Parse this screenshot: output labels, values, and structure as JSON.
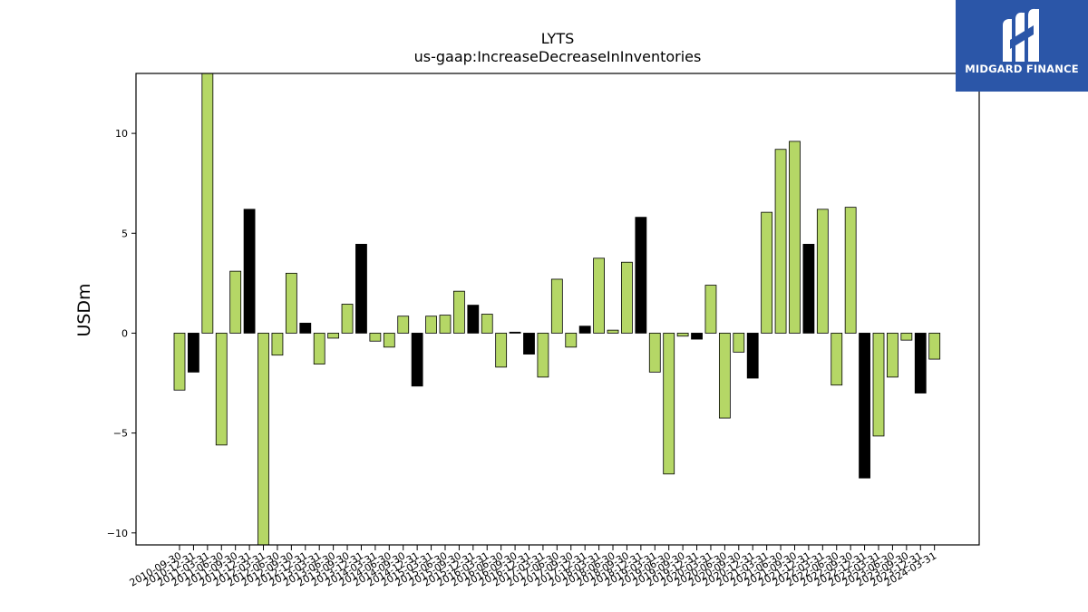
{
  "chart_data": {
    "type": "bar",
    "title": "LYTS",
    "subtitle": "us-gaap:IncreaseDecreaseInInventories",
    "xlabel": "",
    "ylabel": "USDm",
    "ylim": [
      -10.6,
      13
    ],
    "yticks": [
      -10,
      -5,
      0,
      5,
      10
    ],
    "grid": false,
    "categories": [
      "2010-09-30",
      "2010-12-31",
      "2011-03-31",
      "2011-06-30",
      "2011-09-30",
      "2011-12-31",
      "2012-03-31",
      "2012-06-30",
      "2012-09-30",
      "2012-12-31",
      "2013-03-31",
      "2013-06-30",
      "2013-09-30",
      "2013-12-31",
      "2014-03-31",
      "2014-06-30",
      "2014-09-30",
      "2014-12-31",
      "2015-03-31",
      "2015-06-30",
      "2015-09-30",
      "2015-12-31",
      "2016-03-31",
      "2016-06-30",
      "2016-09-30",
      "2016-12-31",
      "2017-03-31",
      "2017-06-30",
      "2017-09-30",
      "2017-12-31",
      "2018-03-31",
      "2018-06-30",
      "2018-09-30",
      "2018-12-31",
      "2019-03-31",
      "2019-06-30",
      "2019-09-30",
      "2019-12-31",
      "2020-03-31",
      "2020-06-30",
      "2020-09-30",
      "2020-12-31",
      "2021-03-31",
      "2021-06-30",
      "2021-09-30",
      "2021-12-31",
      "2022-03-31",
      "2022-06-30",
      "2022-09-30",
      "2022-12-31",
      "2023-03-31",
      "2023-06-30",
      "2023-09-30",
      "2023-12-31",
      "2024-03-31"
    ],
    "values": [
      -2.85,
      -1.95,
      13.0,
      -5.6,
      3.1,
      6.2,
      -10.6,
      -1.1,
      3.0,
      0.5,
      -1.55,
      -0.25,
      1.45,
      4.45,
      -0.4,
      -0.7,
      0.85,
      -2.65,
      0.85,
      0.9,
      2.1,
      1.4,
      0.95,
      -1.7,
      0.05,
      -1.05,
      -2.2,
      2.7,
      -0.7,
      0.35,
      3.75,
      0.15,
      3.55,
      5.8,
      -1.95,
      -7.05,
      -0.15,
      -0.3,
      2.4,
      -4.25,
      -0.95,
      -2.25,
      6.05,
      9.2,
      9.6,
      4.45,
      6.2,
      -2.6,
      6.3,
      -7.25,
      -5.15,
      -2.2,
      -0.35,
      -3.0,
      -1.3
    ],
    "bar_colors": [
      "#b5d766",
      "#000000",
      "#b5d766",
      "#b5d766",
      "#b5d766",
      "#000000",
      "#b5d766",
      "#b5d766",
      "#b5d766",
      "#000000",
      "#b5d766",
      "#b5d766",
      "#b5d766",
      "#000000",
      "#b5d766",
      "#b5d766",
      "#b5d766",
      "#000000",
      "#b5d766",
      "#b5d766",
      "#b5d766",
      "#000000",
      "#b5d766",
      "#b5d766",
      "#000000",
      "#000000",
      "#b5d766",
      "#b5d766",
      "#b5d766",
      "#000000",
      "#b5d766",
      "#b5d766",
      "#b5d766",
      "#000000",
      "#b5d766",
      "#b5d766",
      "#b5d766",
      "#000000",
      "#b5d766",
      "#b5d766",
      "#b5d766",
      "#000000",
      "#b5d766",
      "#b5d766",
      "#b5d766",
      "#000000",
      "#b5d766",
      "#b5d766",
      "#b5d766",
      "#000000",
      "#b5d766",
      "#b5d766",
      "#b5d766",
      "#000000",
      "#b5d766"
    ],
    "colors": {
      "positive_bar": "#b5d766",
      "q4_bar": "#000000",
      "edge": "#000000"
    }
  },
  "branding": {
    "logo_text": "MIDGARD FINANCE",
    "logo_icon": "midgard-finance-logo-icon",
    "logo_background": "#2b56a8"
  }
}
